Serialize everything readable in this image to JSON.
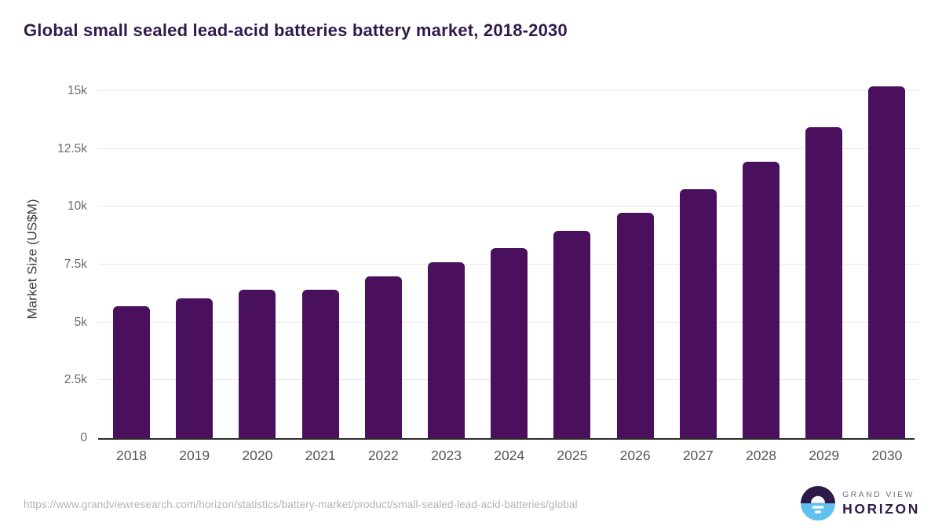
{
  "page": {
    "title": "Global small sealed lead-acid batteries battery market, 2018-2030"
  },
  "footer": {
    "source_url": "https://www.grandviewresearch.com/horizon/statistics/battery-market/product/small-sealed-lead-acid-batteries/global",
    "logo_top": "GRAND VIEW",
    "logo_bottom": "HORIZON"
  },
  "colors": {
    "bar": "#4a105e",
    "title_text": "#2f1a4d",
    "x_tick_text": "#555555",
    "y_tick_text": "#6b6b6b",
    "y_axis_label_text": "#3d3d3d",
    "gridline": "#e7e7e7",
    "baseline": "#2b2b2b",
    "footer_text": "#b4b4b4",
    "logo_purple": "#2e1a47",
    "logo_blue": "#5ec1ee",
    "logo_gray": "#6e6e78"
  },
  "chart_data": {
    "type": "bar",
    "title": "Global small sealed lead-acid batteries battery market, 2018-2030",
    "xlabel": "",
    "ylabel": "Market Size (US$M)",
    "unit": "US$M",
    "categories": [
      "2018",
      "2019",
      "2020",
      "2021",
      "2022",
      "2023",
      "2024",
      "2025",
      "2026",
      "2027",
      "2028",
      "2029",
      "2030"
    ],
    "values": [
      5700,
      6050,
      6400,
      6400,
      7000,
      7600,
      8200,
      8950,
      9750,
      10750,
      11950,
      13450,
      15200
    ],
    "ylim": [
      0,
      15500
    ],
    "yticks": [
      {
        "value": 0,
        "label": "0"
      },
      {
        "value": 2500,
        "label": "2.5k"
      },
      {
        "value": 5000,
        "label": "5k"
      },
      {
        "value": 7500,
        "label": "7.5k"
      },
      {
        "value": 10000,
        "label": "10k"
      },
      {
        "value": 12500,
        "label": "12.5k"
      },
      {
        "value": 15000,
        "label": "15k"
      }
    ],
    "grid": "horizontal",
    "legend": "none",
    "bar_color": "#4a105e"
  }
}
